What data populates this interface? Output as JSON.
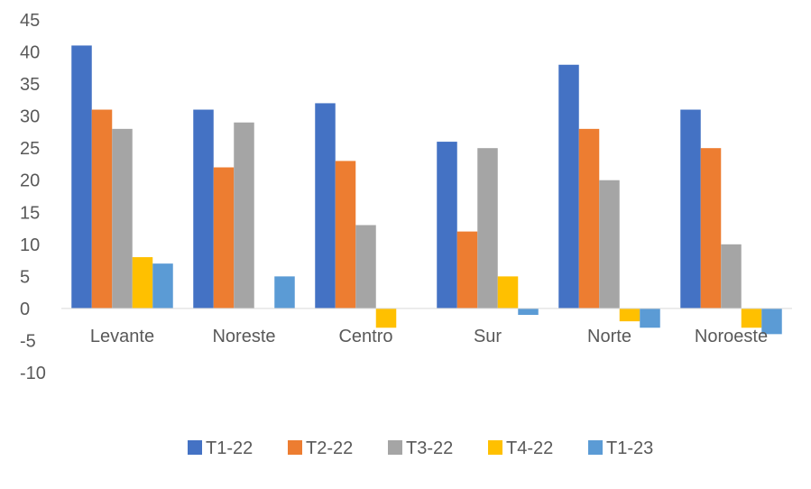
{
  "chart_data": {
    "type": "bar",
    "title": "",
    "xlabel": "",
    "ylabel": "",
    "categories": [
      "Levante",
      "Noreste",
      "Centro",
      "Sur",
      "Norte",
      "Noroeste"
    ],
    "ylim": [
      -10,
      45
    ],
    "yticks": [
      -10,
      -5,
      0,
      5,
      10,
      15,
      20,
      25,
      30,
      35,
      40,
      45
    ],
    "grid": false,
    "legend_position": "bottom",
    "series": [
      {
        "name": "T1-22",
        "color": "#4472C4",
        "values": [
          41,
          31,
          32,
          26,
          38,
          31
        ]
      },
      {
        "name": "T2-22",
        "color": "#ED7D31",
        "values": [
          31,
          22,
          23,
          12,
          28,
          25
        ]
      },
      {
        "name": "T3-22",
        "color": "#A5A5A5",
        "values": [
          28,
          29,
          13,
          25,
          20,
          10
        ]
      },
      {
        "name": "T4-22",
        "color": "#FFC000",
        "values": [
          8,
          0,
          -3,
          5,
          -2,
          -3
        ]
      },
      {
        "name": "T1-23",
        "color": "#5B9BD5",
        "values": [
          7,
          5,
          0,
          -1,
          -3,
          -4
        ]
      }
    ]
  }
}
